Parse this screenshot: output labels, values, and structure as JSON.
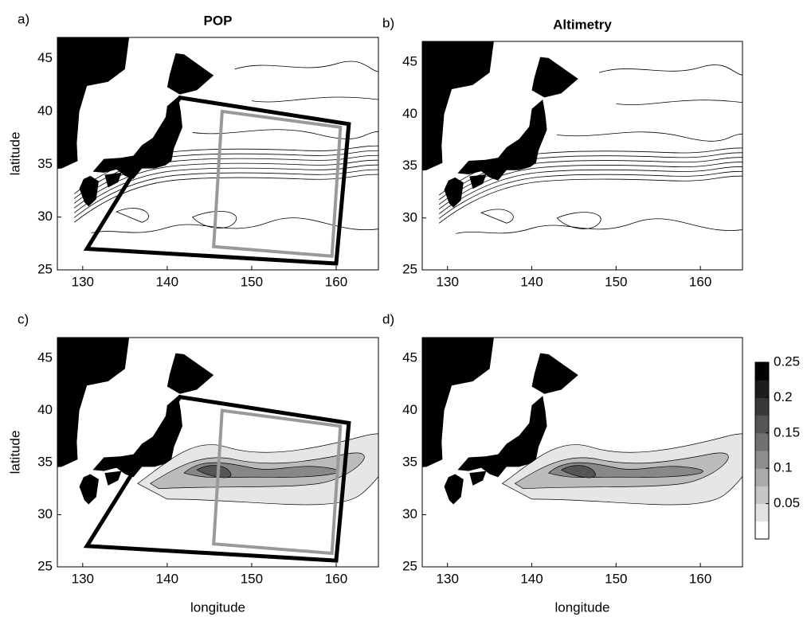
{
  "chart_data": [
    {
      "type": "contour-map",
      "label": "a)",
      "title": "POP",
      "ylabel": "latitude",
      "xlim": [
        127,
        165
      ],
      "ylim": [
        25,
        47
      ],
      "xticks": [
        130,
        140,
        150,
        160
      ],
      "yticks": [
        25,
        30,
        35,
        40,
        45
      ],
      "boxes": true
    },
    {
      "type": "contour-map",
      "label": "b)",
      "title": "Altimetry",
      "xlim": [
        127,
        165
      ],
      "ylim": [
        25,
        47
      ],
      "xticks": [
        130,
        140,
        150,
        160
      ],
      "yticks": [
        25,
        30,
        35,
        40,
        45
      ]
    },
    {
      "type": "filled-map",
      "label": "c)",
      "xlabel": "longitude",
      "ylabel": "latitude",
      "xlim": [
        127,
        165
      ],
      "ylim": [
        25,
        47
      ],
      "xticks": [
        130,
        140,
        150,
        160
      ],
      "yticks": [
        25,
        30,
        35,
        40,
        45
      ],
      "boxes": true
    },
    {
      "type": "filled-map",
      "label": "d)",
      "xlabel": "longitude",
      "xlim": [
        127,
        165
      ],
      "ylim": [
        25,
        47
      ],
      "xticks": [
        130,
        140,
        150,
        160
      ],
      "yticks": [
        25,
        30,
        35,
        40,
        45
      ],
      "colorbar": {
        "clim": [
          0,
          0.25
        ],
        "ticks": [
          0.05,
          0.1,
          0.15,
          0.2,
          0.25
        ]
      }
    }
  ]
}
